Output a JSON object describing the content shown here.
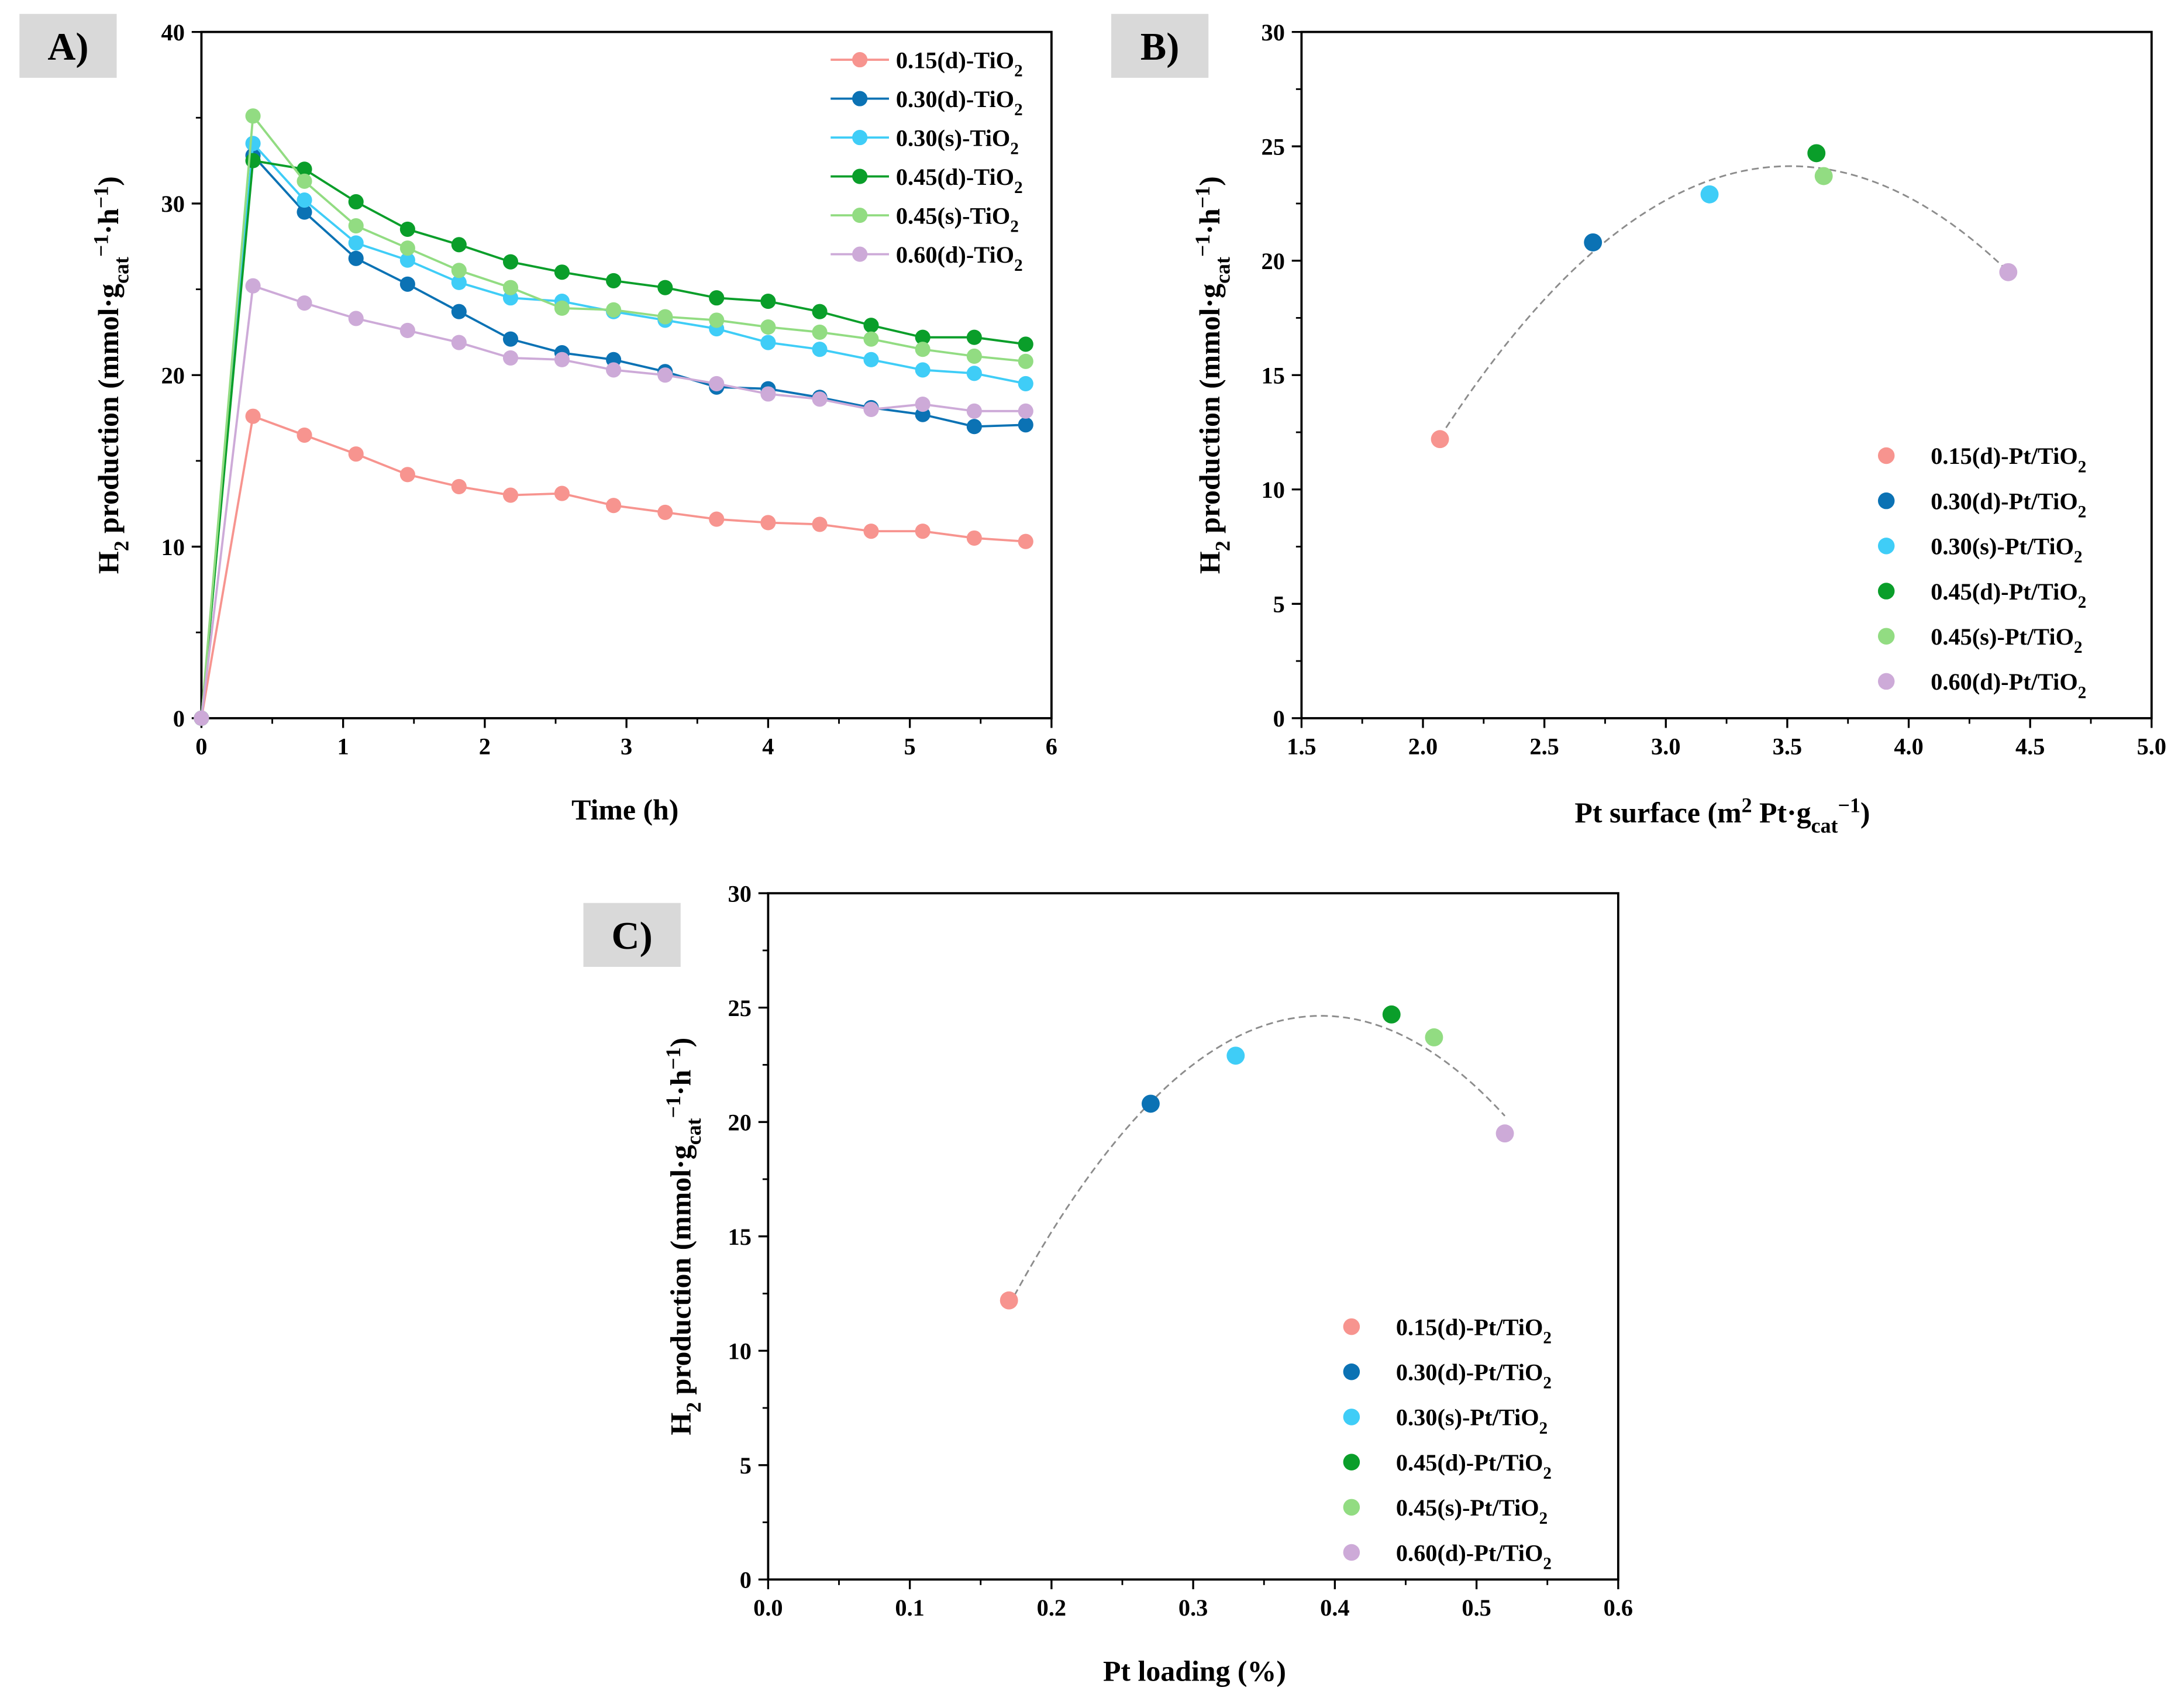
{
  "colors": {
    "0.15(d)": "#f7948f",
    "0.30(d)": "#0b72b4",
    "0.30(s)": "#3fcdf7",
    "0.45(d)": "#0a9e2a",
    "0.45(s)": "#92dc82",
    "0.60(d)": "#cdaad8"
  },
  "chart_data": [
    {
      "id": "A",
      "panel_label": "A)",
      "type": "line",
      "xlabel": "Time (h)",
      "ylabel": "H_{2} production (mmol·g_{cat}^{−1}·h^{−1})",
      "xlim": [
        0,
        6
      ],
      "ylim": [
        0,
        40
      ],
      "xticks": [
        0,
        1,
        2,
        3,
        4,
        5,
        6
      ],
      "yticks": [
        0,
        10,
        20,
        30,
        40
      ],
      "xtick_labels": [
        "0",
        "1",
        "2",
        "3",
        "4",
        "5",
        "6"
      ],
      "ytick_labels": [
        "0",
        "10",
        "20",
        "30",
        "40"
      ],
      "legend_position": "top-right",
      "x": [
        0,
        0.364,
        0.727,
        1.091,
        1.455,
        1.818,
        2.182,
        2.545,
        2.909,
        3.273,
        3.636,
        4.0,
        4.364,
        4.727,
        5.091,
        5.455,
        5.818
      ],
      "series": [
        {
          "key": "0.15(d)",
          "name": "0.15(d)-TiO_{2}",
          "values": [
            0,
            17.6,
            16.5,
            15.4,
            14.2,
            13.5,
            13.0,
            13.1,
            12.4,
            12.0,
            11.6,
            11.4,
            11.3,
            10.9,
            10.9,
            10.5,
            10.3
          ]
        },
        {
          "key": "0.30(d)",
          "name": "0.30(d)-TiO_{2}",
          "values": [
            0,
            32.8,
            29.5,
            26.8,
            25.3,
            23.7,
            22.1,
            21.3,
            20.9,
            20.2,
            19.3,
            19.2,
            18.7,
            18.1,
            17.7,
            17.0,
            17.1
          ]
        },
        {
          "key": "0.30(s)",
          "name": "0.30(s)-TiO_{2}",
          "values": [
            0,
            33.5,
            30.2,
            27.7,
            26.7,
            25.4,
            24.5,
            24.3,
            23.7,
            23.2,
            22.7,
            21.9,
            21.5,
            20.9,
            20.3,
            20.1,
            19.5
          ]
        },
        {
          "key": "0.45(d)",
          "name": "0.45(d)-TiO_{2}",
          "values": [
            0,
            32.5,
            32.0,
            30.1,
            28.5,
            27.6,
            26.6,
            26.0,
            25.5,
            25.1,
            24.5,
            24.3,
            23.7,
            22.9,
            22.2,
            22.2,
            21.8
          ]
        },
        {
          "key": "0.45(s)",
          "name": "0.45(s)-TiO_{2}",
          "values": [
            0,
            35.1,
            31.3,
            28.7,
            27.4,
            26.1,
            25.1,
            23.9,
            23.8,
            23.4,
            23.2,
            22.8,
            22.5,
            22.1,
            21.5,
            21.1,
            20.8
          ]
        },
        {
          "key": "0.60(d)",
          "name": "0.60(d)-TiO_{2}",
          "values": [
            0,
            25.2,
            24.2,
            23.3,
            22.6,
            21.9,
            21.0,
            20.9,
            20.3,
            20.0,
            19.5,
            18.9,
            18.6,
            18.0,
            18.3,
            17.9,
            17.9
          ]
        }
      ]
    },
    {
      "id": "B",
      "panel_label": "B)",
      "type": "scatter",
      "xlabel": "Pt surface (m^{2} Pt·g_{cat}^{−1})",
      "ylabel": "H_{2} production (mmol·g_{cat}^{−1}·h^{−1})",
      "xlim": [
        1.5,
        5.0
      ],
      "ylim": [
        0,
        30
      ],
      "xticks": [
        1.5,
        2.0,
        2.5,
        3.0,
        3.5,
        4.0,
        4.5,
        5.0
      ],
      "yticks": [
        0,
        5,
        10,
        15,
        20,
        25,
        30
      ],
      "xtick_labels": [
        "1.5",
        "2.0",
        "2.5",
        "3.0",
        "3.5",
        "4.0",
        "4.5",
        "5.0"
      ],
      "ytick_labels": [
        "0",
        "5",
        "10",
        "15",
        "20",
        "25",
        "30"
      ],
      "legend_position": "bottom-right",
      "fit": "quadratic (dashed)",
      "series": [
        {
          "key": "0.15(d)",
          "name": "0.15(d)-Pt/TiO_{2}",
          "x": 2.07,
          "y": 12.2
        },
        {
          "key": "0.30(d)",
          "name": "0.30(d)-Pt/TiO_{2}",
          "x": 2.7,
          "y": 20.8
        },
        {
          "key": "0.30(s)",
          "name": "0.30(s)-Pt/TiO_{2}",
          "x": 3.18,
          "y": 22.9
        },
        {
          "key": "0.45(d)",
          "name": "0.45(d)-Pt/TiO_{2}",
          "x": 3.62,
          "y": 24.7
        },
        {
          "key": "0.45(s)",
          "name": "0.45(s)-Pt/TiO_{2}",
          "x": 3.65,
          "y": 23.7
        },
        {
          "key": "0.60(d)",
          "name": "0.60(d)-Pt/TiO_{2}",
          "x": 4.41,
          "y": 19.5
        }
      ]
    },
    {
      "id": "C",
      "panel_label": "C)",
      "type": "scatter",
      "xlabel": "Pt loading (%)",
      "ylabel": "H_{2} production (mmol·g_{cat}^{−1}·h^{−1})",
      "xlim": [
        0,
        0.6
      ],
      "ylim": [
        0,
        30
      ],
      "xticks": [
        0,
        0.1,
        0.2,
        0.3,
        0.4,
        0.5,
        0.6
      ],
      "yticks": [
        0,
        5,
        10,
        15,
        20,
        25,
        30
      ],
      "xtick_labels": [
        "0.0",
        "0.1",
        "0.2",
        "0.3",
        "0.4",
        "0.5",
        "0.6"
      ],
      "ytick_labels": [
        "0",
        "5",
        "10",
        "15",
        "20",
        "25",
        "30"
      ],
      "legend_position": "bottom-right",
      "fit": "quadratic (dashed)",
      "series": [
        {
          "key": "0.15(d)",
          "name": "0.15(d)-Pt/TiO_{2}",
          "x": 0.17,
          "y": 12.2
        },
        {
          "key": "0.30(d)",
          "name": "0.30(d)-Pt/TiO_{2}",
          "x": 0.27,
          "y": 20.8
        },
        {
          "key": "0.30(s)",
          "name": "0.30(s)-Pt/TiO_{2}",
          "x": 0.33,
          "y": 22.9
        },
        {
          "key": "0.45(d)",
          "name": "0.45(d)-Pt/TiO_{2}",
          "x": 0.44,
          "y": 24.7
        },
        {
          "key": "0.45(s)",
          "name": "0.45(s)-Pt/TiO_{2}",
          "x": 0.47,
          "y": 23.7
        },
        {
          "key": "0.60(d)",
          "name": "0.60(d)-Pt/TiO_{2}",
          "x": 0.52,
          "y": 19.5
        }
      ]
    }
  ]
}
